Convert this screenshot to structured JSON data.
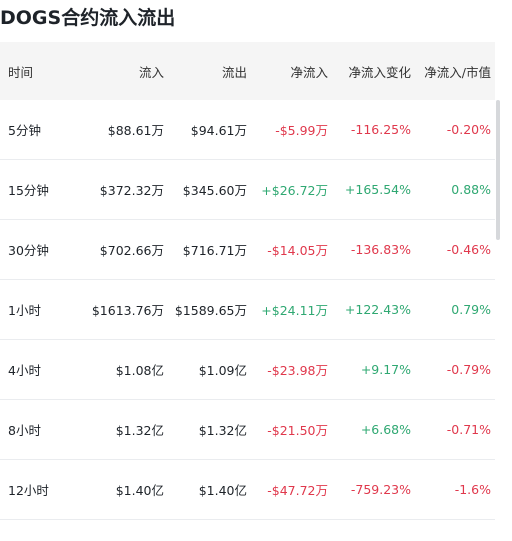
{
  "header": {
    "title": "DOGS合约流入流出"
  },
  "table": {
    "columns": [
      "时间",
      "流入",
      "流出",
      "净流入",
      "净流入变化",
      "净流入/市值"
    ],
    "rows": [
      [
        "5分钟",
        "$88.61万",
        "$94.61万",
        "-$5.99万",
        "-116.25%",
        "-0.20%"
      ],
      [
        "15分钟",
        "$372.32万",
        "$345.60万",
        "+$26.72万",
        "+165.54%",
        "0.88%"
      ],
      [
        "30分钟",
        "$702.66万",
        "$716.71万",
        "-$14.05万",
        "-136.83%",
        "-0.46%"
      ],
      [
        "1小时",
        "$1613.76万",
        "$1589.65万",
        "+$24.11万",
        "+122.43%",
        "0.79%"
      ],
      [
        "4小时",
        "$1.08亿",
        "$1.09亿",
        "-$23.98万",
        "+9.17%",
        "-0.79%"
      ],
      [
        "8小时",
        "$1.32亿",
        "$1.32亿",
        "-$21.50万",
        "+6.68%",
        "-0.71%"
      ],
      [
        "12小时",
        "$1.40亿",
        "$1.40亿",
        "-$47.72万",
        "-759.23%",
        "-1.6%"
      ]
    ]
  }
}
